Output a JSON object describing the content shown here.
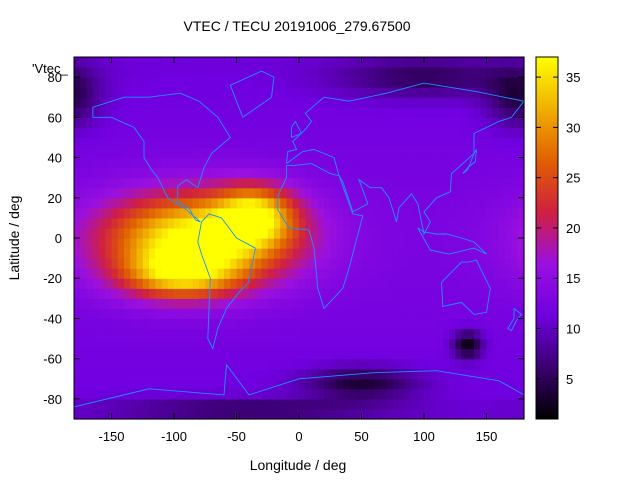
{
  "chart_data": {
    "type": "heatmap",
    "title": "VTEC / TECU 20191006_279.67500",
    "xlabel": "Longitude / deg",
    "ylabel": "Latitude / deg",
    "xlim": [
      -180,
      180
    ],
    "ylim": [
      -90,
      90
    ],
    "x_ticks": [
      "-150",
      "-100",
      "-50",
      "0",
      "50",
      "100",
      "150"
    ],
    "y_ticks": [
      "-80",
      "-60",
      "-40",
      "-20",
      "0",
      "20",
      "40",
      "60",
      "80"
    ],
    "colorbar": {
      "range": [
        1,
        37
      ],
      "ticks": [
        "5",
        "10",
        "15",
        "20",
        "25",
        "30",
        "35"
      ],
      "palette": [
        "#000000",
        "#3a0070",
        "#7000e0",
        "#9a10e0",
        "#d02040",
        "#e06000",
        "#f0b000",
        "#ffff00"
      ]
    },
    "stray_label": "'Vtec_",
    "coastline_color": "#1e90ff",
    "background_level": 11,
    "features": [
      {
        "name": "equatorial anomaly America/Atlantic",
        "lon": -80,
        "lat": 0,
        "lon_radius": 75,
        "lat_radius": 22,
        "peak": 37
      },
      {
        "name": "anomaly Atlantic crest",
        "lon": -35,
        "lat": 12,
        "lon_radius": 30,
        "lat_radius": 14,
        "peak": 27
      },
      {
        "name": "anomaly southern crest",
        "lon": -95,
        "lat": -18,
        "lon_radius": 45,
        "lat_radius": 12,
        "peak": 26
      },
      {
        "name": "south Pacific low",
        "lon": 135,
        "lat": -53,
        "lon_radius": 12,
        "lat_radius": 7,
        "peak": 1
      },
      {
        "name": "south Indian Ocean low",
        "lon": 50,
        "lat": -72,
        "lon_radius": 45,
        "lat_radius": 8,
        "peak": 3
      },
      {
        "name": "arctic Asia low",
        "lon": 100,
        "lat": 80,
        "lon_radius": 70,
        "lat_radius": 10,
        "peak": 5
      },
      {
        "name": "arctic Pacific low",
        "lon": 175,
        "lat": 70,
        "lon_radius": 25,
        "lat_radius": 15,
        "peak": 4
      },
      {
        "name": "Antarctic low",
        "lon": -40,
        "lat": -85,
        "lon_radius": 110,
        "lat_radius": 5,
        "peak": 5
      }
    ]
  }
}
